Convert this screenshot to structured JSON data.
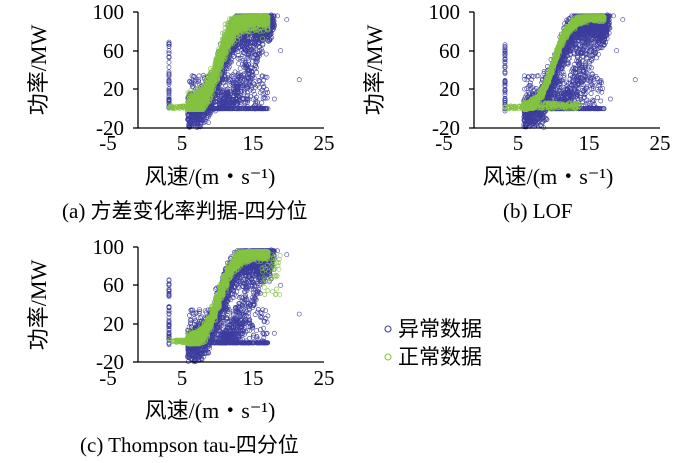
{
  "colors": {
    "anomaly": "#3d3d9e",
    "normal": "#84c341"
  },
  "legend": {
    "anomaly_label": "异常数据",
    "normal_label": "正常数据"
  },
  "chart_data": [
    {
      "type": "scatter",
      "caption": "(a)  方差变化率判据-四分位",
      "xlabel": "风速/(m・s⁻¹)",
      "ylabel": "功率/MW",
      "xlim": [
        -5,
        25
      ],
      "ylim": [
        -20,
        100
      ],
      "xticks": [
        -5,
        5,
        15,
        25
      ],
      "yticks": [
        -20,
        20,
        60,
        100
      ],
      "series": [
        {
          "name": "异常数据",
          "description": "scattered low/zero power and off-curve points",
          "curve_shift": 0,
          "band_width": 8
        },
        {
          "name": "正常数据",
          "description": "dense band along power curve",
          "curve_shift": 0,
          "band_width": 1.6
        }
      ]
    },
    {
      "type": "scatter",
      "caption": "(b)  LOF",
      "xlabel": "风速/(m・s⁻¹)",
      "ylabel": "功率/MW",
      "xlim": [
        -5,
        25
      ],
      "ylim": [
        -20,
        100
      ],
      "xticks": [
        -5,
        5,
        15,
        25
      ],
      "yticks": [
        -20,
        20,
        60,
        100
      ],
      "series": [
        {
          "name": "异常数据",
          "description": "scattered low/zero power and off-curve points",
          "curve_shift": 0,
          "band_width": 8
        },
        {
          "name": "正常数据",
          "description": "thin normal band plus low-power clusters",
          "curve_shift": 0,
          "band_width": 0.9
        }
      ]
    },
    {
      "type": "scatter",
      "caption": "(c)  Thompson tau-四分位",
      "xlabel": "风速/(m・s⁻¹)",
      "ylabel": "功率/MW",
      "xlim": [
        -5,
        25
      ],
      "ylim": [
        -20,
        100
      ],
      "xticks": [
        -5,
        5,
        15,
        25
      ],
      "yticks": [
        -20,
        20,
        60,
        100
      ],
      "series": [
        {
          "name": "异常数据",
          "description": "scattered low/zero power and off-curve points",
          "curve_shift": 0,
          "band_width": 8
        },
        {
          "name": "正常数据",
          "description": "stepped band along power curve",
          "curve_shift": 0,
          "band_width": 1.4
        }
      ]
    }
  ]
}
